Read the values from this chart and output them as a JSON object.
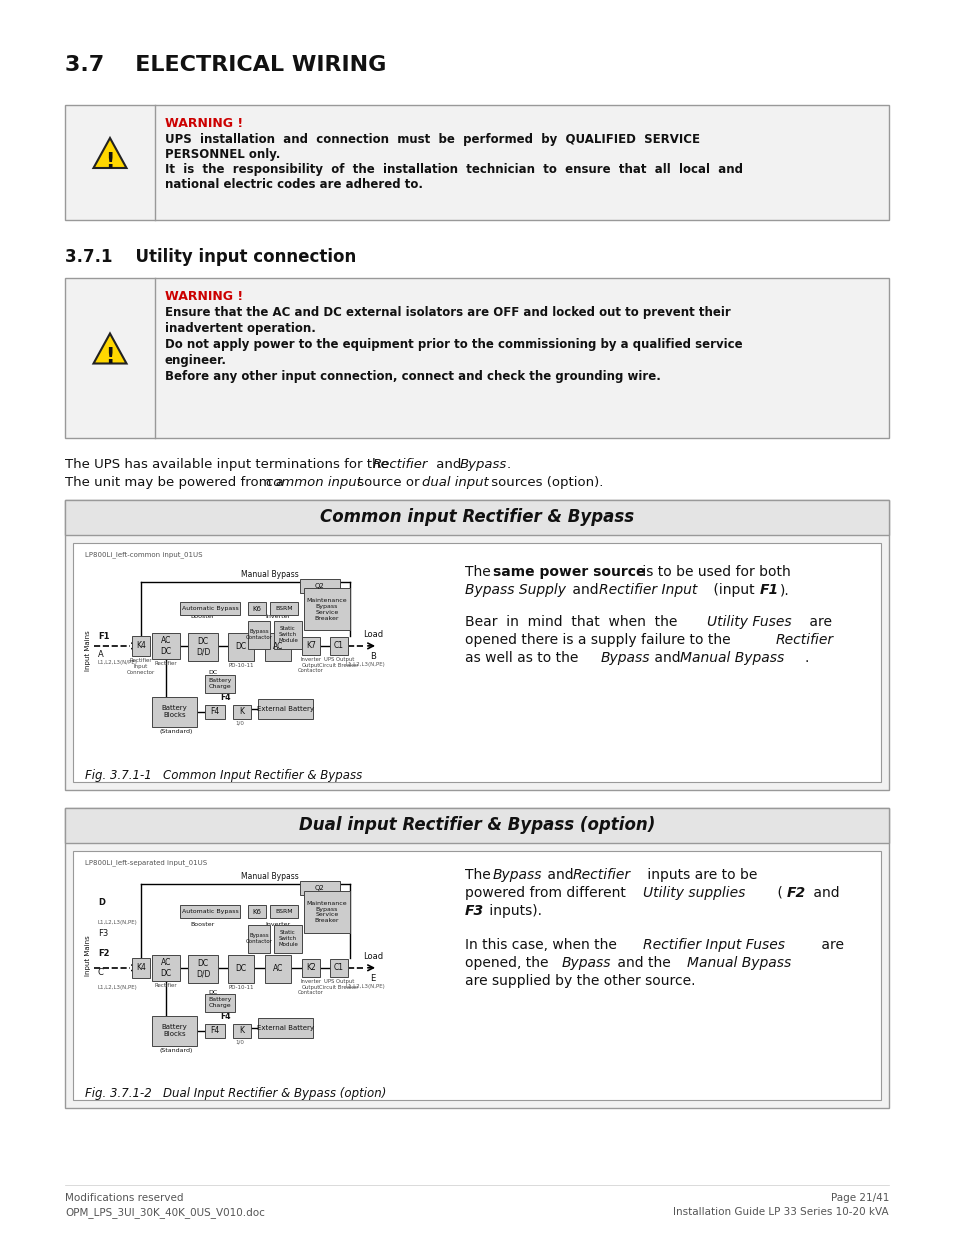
{
  "bg_color": "#ffffff",
  "title": "3.7    ELECTRICAL WIRING",
  "section_371": "3.7.1    Utility input connection",
  "warning1_title": "WARNING !",
  "warning1_lines": [
    "UPS  installation  and  connection  must  be  performed  by  QUALIFIED  SERVICE",
    "PERSONNEL only.",
    "It  is  the  responsibility  of  the  installation  technician  to  ensure  that  all  local  and",
    "national electric codes are adhered to."
  ],
  "warning2_title": "WARNING !",
  "warning2_lines": [
    "Ensure that the AC and DC external isolators are OFF and locked out to prevent their",
    "inadvertent operation.",
    "Do not apply power to the equipment prior to the commissioning by a qualified service",
    "engineer.",
    "Before any other input connection, connect and check the grounding wire."
  ],
  "para1_normal": "The UPS has available input terminations for the ",
  "para1_italic": "Rectifier",
  "para1_mid": " and ",
  "para1_italic2": "Bypass",
  "para1_end": ".",
  "para2_normal": "The unit may be powered from a ",
  "para2_italic": "common input",
  "para2_mid": " source or ",
  "para2_italic2": "dual input",
  "para2_end": " sources (option).",
  "box1_title": "Common input Rectifier & Bypass",
  "box2_title": "Dual input Rectifier & Bypass (option)",
  "box1_fig": "Fig. 3.7.1-1   Common Input Rectifier & Bypass",
  "box2_fig": "Fig. 3.7.1-2   Dual Input Rectifier & Bypass (option)",
  "footer_left1": "Modifications reserved",
  "footer_left2": "OPM_LPS_3UI_30K_40K_0US_V010.doc",
  "footer_right1": "Page 21/41",
  "footer_right2": "Installation Guide LP 33 Series 10-20 kVA",
  "warning_color": "#cc0000",
  "text_color": "#111111",
  "box_bg_outer": "#f2f2f2",
  "box_bg_inner": "#ffffff",
  "border_color": "#999999"
}
